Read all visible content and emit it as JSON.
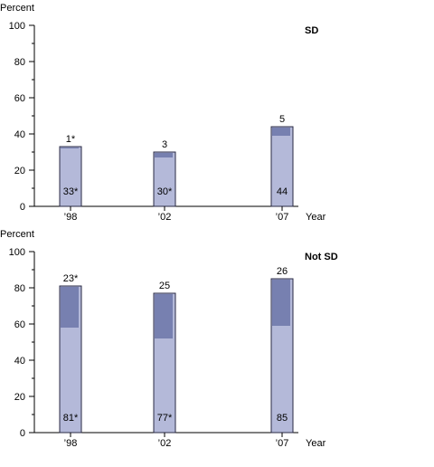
{
  "chart_data": [
    {
      "type": "bar",
      "title": "SD",
      "ylabel": "Percent",
      "xlabel": "Year",
      "ylim": [
        0,
        100
      ],
      "yticks": [
        "0",
        "20",
        "40",
        "60",
        "80",
        "100"
      ],
      "categories": [
        "’98",
        "’02",
        "’07"
      ],
      "years": [
        1998,
        2002,
        2007
      ],
      "series": [
        {
          "values": [
            33,
            30,
            44
          ],
          "labels": [
            "33*",
            "30*",
            "44"
          ],
          "color": "#b4b9d9"
        },
        {
          "values": [
            1,
            3,
            5
          ],
          "labels": [
            "1*",
            "3",
            "5"
          ],
          "color": "#7780b0"
        }
      ],
      "grid": false,
      "legend": "none"
    },
    {
      "type": "bar",
      "title": "Not SD",
      "ylabel": "Percent",
      "xlabel": "Year",
      "ylim": [
        0,
        100
      ],
      "yticks": [
        "0",
        "20",
        "40",
        "60",
        "80",
        "100"
      ],
      "categories": [
        "’98",
        "’02",
        "’07"
      ],
      "years": [
        1998,
        2002,
        2007
      ],
      "series": [
        {
          "values": [
            81,
            77,
            85
          ],
          "labels": [
            "81*",
            "77*",
            "85"
          ],
          "color": "#b4b9d9"
        },
        {
          "values": [
            23,
            25,
            26
          ],
          "labels": [
            "23*",
            "25",
            "26"
          ],
          "color": "#7780b0"
        }
      ],
      "grid": false,
      "legend": "none"
    }
  ]
}
